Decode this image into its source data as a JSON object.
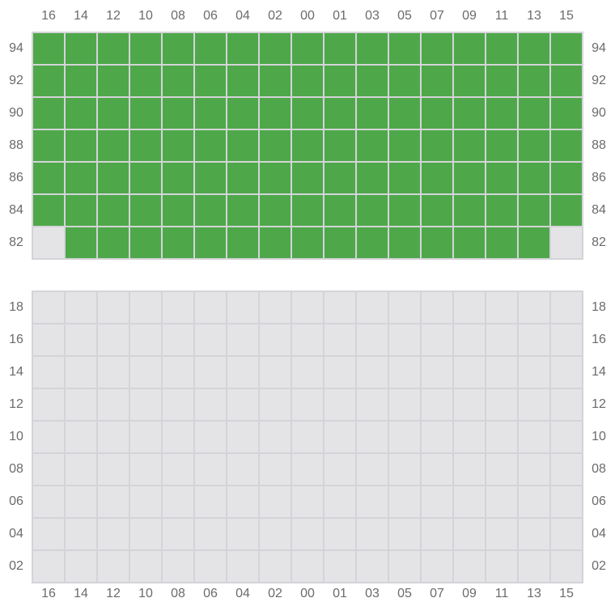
{
  "columns": [
    "16",
    "14",
    "12",
    "10",
    "08",
    "06",
    "04",
    "02",
    "00",
    "01",
    "03",
    "05",
    "07",
    "09",
    "11",
    "13",
    "15"
  ],
  "colors": {
    "filled": "#4ea84a",
    "disabled": "#e4e4e7",
    "empty": "#ffffff",
    "grid_line": "#d4d4d8"
  },
  "top_rack": {
    "rows": [
      {
        "label": "94",
        "cells": "FFFFFFFFFFFFFFFFF"
      },
      {
        "label": "92",
        "cells": "FFFFFFFFFFFFFFFFF"
      },
      {
        "label": "90",
        "cells": "FFFFFFFFFFFFFFFFF"
      },
      {
        "label": "88",
        "cells": "FFFFFFFFFFFFFFFFF"
      },
      {
        "label": "86",
        "cells": "FFFFFFFFFFFFFFFFF"
      },
      {
        "label": "84",
        "cells": "FFFFFFFFFFFFFFFFF"
      },
      {
        "label": "82",
        "cells": "XFFFFFFFFFFFFFFFX"
      }
    ]
  },
  "bottom_rack": {
    "rows": [
      {
        "label": "18",
        "cells": "XXXXXXXXXXXXXXXXX"
      },
      {
        "label": "16",
        "cells": "XXXXXXXXXXXXXXXXX"
      },
      {
        "label": "14",
        "cells": "XXXXXXXXXXXXXXXXX"
      },
      {
        "label": "12",
        "cells": "XXXXXXXXXXXXXXXXX"
      },
      {
        "label": "10",
        "cells": "XXXXXXXXXXXXXXXXX"
      },
      {
        "label": "08",
        "cells": "XXXXXXXXXXXXXXXXX"
      },
      {
        "label": "06",
        "cells": "XXXXXXXXXXXXXXXXX"
      },
      {
        "label": "04",
        "cells": "XXXXXXXXXXXXXXXXX"
      },
      {
        "label": "02",
        "cells": "XXXXXXXXXXXXXXXXX"
      }
    ]
  },
  "legend_codes": {
    "F": "filled",
    "X": "disabled",
    "E": "empty"
  }
}
